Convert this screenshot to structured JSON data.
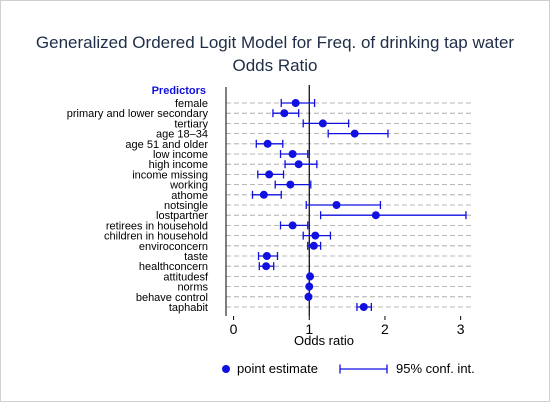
{
  "chart_data": {
    "type": "scatter",
    "title": "Generalized Ordered Logit Model for Freq. of drinking tap water",
    "subtitle": "Odds Ratio",
    "xlabel": "Odds ratio",
    "ylabel": "",
    "predictors_header": "Predictors",
    "xlim": [
      -0.1,
      3.15
    ],
    "xticks": [
      0,
      1,
      2,
      3
    ],
    "reference_line": 1,
    "grid": true,
    "legend_position": "bottom",
    "legend": {
      "point": "point estimate",
      "ci": "95% conf. int."
    },
    "colors": {
      "marker": "#1010e0",
      "header": "#1010e0",
      "title": "#1f2d47",
      "grid": "#a0a0a0",
      "text": "#000000"
    },
    "categories": [
      "female",
      "primary and lower secondary",
      "tertiary",
      "age 18–34",
      "age 51 and older",
      "low income",
      "high income",
      "income missing",
      "working",
      "athome",
      "notsingle",
      "lostpartner",
      "retirees in household",
      "children in household",
      "enviroconcern",
      "taste",
      "healthconcern",
      "attitudesf",
      "norms",
      "behave control",
      "taphabit"
    ],
    "estimates": [
      0.82,
      0.67,
      1.18,
      1.6,
      0.45,
      0.78,
      0.86,
      0.47,
      0.75,
      0.4,
      1.36,
      1.88,
      0.78,
      1.08,
      1.06,
      0.44,
      0.43,
      1.01,
      1.0,
      0.99,
      1.72
    ],
    "ci_low": [
      0.63,
      0.52,
      0.92,
      1.25,
      0.3,
      0.62,
      0.68,
      0.32,
      0.55,
      0.25,
      0.96,
      1.15,
      0.62,
      0.92,
      0.98,
      0.33,
      0.34,
      1.0,
      0.99,
      0.98,
      1.63
    ],
    "ci_high": [
      1.07,
      0.86,
      1.52,
      2.04,
      0.65,
      0.98,
      1.1,
      0.66,
      1.02,
      0.63,
      1.94,
      3.07,
      0.98,
      1.28,
      1.15,
      0.58,
      0.53,
      1.02,
      1.01,
      1.0,
      1.82
    ]
  }
}
